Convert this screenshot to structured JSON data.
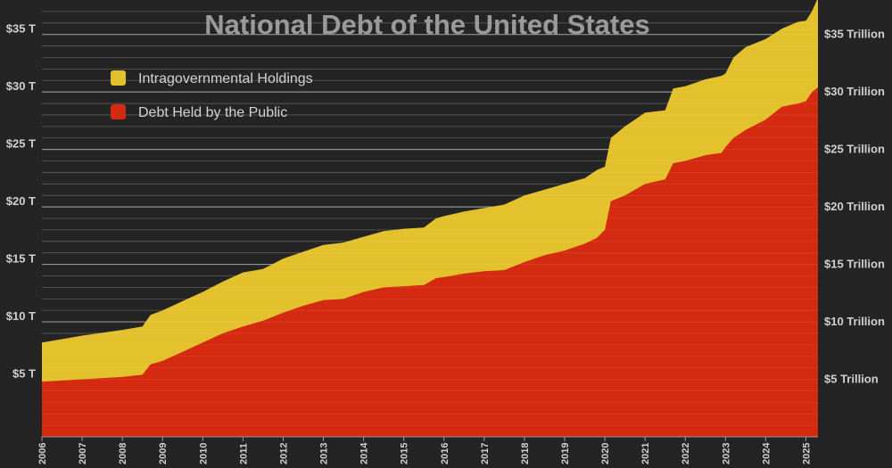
{
  "chart_data": {
    "type": "area",
    "stacked": true,
    "title": "National Debt of the United States",
    "x_start": 2006,
    "x_end": 2025.3,
    "ylim": [
      0,
      38
    ],
    "x_tick_labels": [
      "2006",
      "2007",
      "2008",
      "2009",
      "2010",
      "2011",
      "2012",
      "2013",
      "2014",
      "2015",
      "2016",
      "2017",
      "2018",
      "2019",
      "2020",
      "2021",
      "2022",
      "2023",
      "2024",
      "2025"
    ],
    "y_ticks_left": [
      {
        "value": 5,
        "label": "$5 T"
      },
      {
        "value": 10,
        "label": "$10 T"
      },
      {
        "value": 15,
        "label": "$15 T"
      },
      {
        "value": 20,
        "label": "$20 T"
      },
      {
        "value": 25,
        "label": "$25 T"
      },
      {
        "value": 30,
        "label": "$30 T"
      },
      {
        "value": 35,
        "label": "$35 T"
      }
    ],
    "y_ticks_right": [
      {
        "value": 5,
        "label": "$5 Trillion"
      },
      {
        "value": 10,
        "label": "$10 Trillion"
      },
      {
        "value": 15,
        "label": "$15 Trillion"
      },
      {
        "value": 20,
        "label": "$20 Trillion"
      },
      {
        "value": 25,
        "label": "$25 Trillion"
      },
      {
        "value": 30,
        "label": "$30 Trillion"
      },
      {
        "value": 35,
        "label": "$35 Trillion"
      }
    ],
    "legend_position": "top-left",
    "series": [
      {
        "name": "Debt Held by the Public",
        "color": "#d42a10",
        "points": [
          [
            2006.0,
            4.8
          ],
          [
            2007.0,
            5.0
          ],
          [
            2008.0,
            5.2
          ],
          [
            2008.5,
            5.4
          ],
          [
            2008.7,
            6.3
          ],
          [
            2009.0,
            6.6
          ],
          [
            2009.5,
            7.4
          ],
          [
            2010.0,
            8.2
          ],
          [
            2010.5,
            9.0
          ],
          [
            2011.0,
            9.6
          ],
          [
            2011.5,
            10.1
          ],
          [
            2012.0,
            10.8
          ],
          [
            2012.5,
            11.4
          ],
          [
            2013.0,
            11.9
          ],
          [
            2013.5,
            12.0
          ],
          [
            2014.0,
            12.6
          ],
          [
            2014.5,
            13.0
          ],
          [
            2015.0,
            13.1
          ],
          [
            2015.5,
            13.2
          ],
          [
            2015.8,
            13.8
          ],
          [
            2016.0,
            13.9
          ],
          [
            2016.5,
            14.2
          ],
          [
            2017.0,
            14.4
          ],
          [
            2017.5,
            14.5
          ],
          [
            2018.0,
            15.2
          ],
          [
            2018.5,
            15.8
          ],
          [
            2019.0,
            16.2
          ],
          [
            2019.5,
            16.8
          ],
          [
            2019.8,
            17.3
          ],
          [
            2020.0,
            18.0
          ],
          [
            2020.15,
            20.5
          ],
          [
            2020.5,
            21.0
          ],
          [
            2021.0,
            22.0
          ],
          [
            2021.5,
            22.4
          ],
          [
            2021.7,
            23.8
          ],
          [
            2022.0,
            24.0
          ],
          [
            2022.5,
            24.5
          ],
          [
            2022.9,
            24.7
          ],
          [
            2023.0,
            25.2
          ],
          [
            2023.2,
            26.0
          ],
          [
            2023.5,
            26.7
          ],
          [
            2024.0,
            27.6
          ],
          [
            2024.4,
            28.7
          ],
          [
            2024.8,
            29.0
          ],
          [
            2025.0,
            29.2
          ],
          [
            2025.15,
            30.0
          ],
          [
            2025.3,
            30.4
          ]
        ]
      },
      {
        "name": "Intragovernmental Holdings",
        "color": "#e3c12c",
        "points": [
          [
            2006.0,
            8.2
          ],
          [
            2007.0,
            8.8
          ],
          [
            2008.0,
            9.3
          ],
          [
            2008.5,
            9.6
          ],
          [
            2008.7,
            10.6
          ],
          [
            2009.0,
            11.0
          ],
          [
            2009.5,
            11.8
          ],
          [
            2010.0,
            12.6
          ],
          [
            2010.5,
            13.5
          ],
          [
            2011.0,
            14.3
          ],
          [
            2011.5,
            14.6
          ],
          [
            2012.0,
            15.5
          ],
          [
            2012.5,
            16.1
          ],
          [
            2013.0,
            16.7
          ],
          [
            2013.5,
            16.9
          ],
          [
            2014.0,
            17.4
          ],
          [
            2014.5,
            17.9
          ],
          [
            2015.0,
            18.1
          ],
          [
            2015.5,
            18.2
          ],
          [
            2015.8,
            19.0
          ],
          [
            2016.0,
            19.2
          ],
          [
            2016.5,
            19.6
          ],
          [
            2017.0,
            19.9
          ],
          [
            2017.5,
            20.2
          ],
          [
            2018.0,
            21.0
          ],
          [
            2018.5,
            21.5
          ],
          [
            2019.0,
            22.0
          ],
          [
            2019.5,
            22.5
          ],
          [
            2019.8,
            23.2
          ],
          [
            2020.0,
            23.5
          ],
          [
            2020.15,
            26.0
          ],
          [
            2020.5,
            27.0
          ],
          [
            2021.0,
            28.2
          ],
          [
            2021.5,
            28.4
          ],
          [
            2021.7,
            30.3
          ],
          [
            2022.0,
            30.5
          ],
          [
            2022.5,
            31.1
          ],
          [
            2022.9,
            31.4
          ],
          [
            2023.0,
            31.6
          ],
          [
            2023.2,
            33.0
          ],
          [
            2023.5,
            33.9
          ],
          [
            2024.0,
            34.6
          ],
          [
            2024.4,
            35.5
          ],
          [
            2024.8,
            36.1
          ],
          [
            2025.0,
            36.2
          ],
          [
            2025.15,
            37.0
          ],
          [
            2025.3,
            38.2
          ]
        ]
      }
    ]
  }
}
